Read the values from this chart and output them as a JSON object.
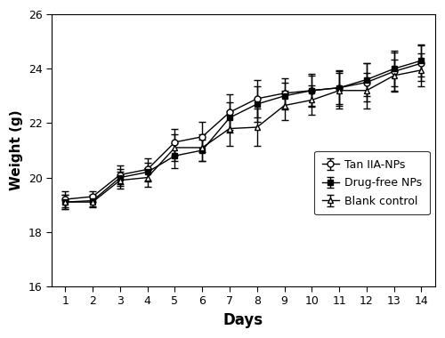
{
  "days": [
    1,
    2,
    3,
    4,
    5,
    6,
    7,
    8,
    9,
    10,
    11,
    12,
    13,
    14
  ],
  "tan_iia_nps": [
    19.2,
    19.3,
    20.1,
    20.3,
    21.3,
    21.5,
    22.4,
    22.9,
    23.1,
    23.2,
    23.3,
    23.5,
    23.9,
    24.2
  ],
  "tan_iia_nps_err": [
    0.3,
    0.2,
    0.35,
    0.4,
    0.5,
    0.55,
    0.65,
    0.7,
    0.55,
    0.6,
    0.65,
    0.7,
    0.7,
    0.65
  ],
  "drug_free_nps": [
    19.1,
    19.15,
    20.0,
    20.2,
    20.8,
    21.0,
    22.2,
    22.7,
    23.0,
    23.2,
    23.3,
    23.6,
    24.0,
    24.3
  ],
  "drug_free_nps_err": [
    0.25,
    0.2,
    0.3,
    0.35,
    0.45,
    0.4,
    0.55,
    0.65,
    0.5,
    0.55,
    0.6,
    0.6,
    0.65,
    0.6
  ],
  "blank_control": [
    19.1,
    19.1,
    19.9,
    20.0,
    21.1,
    21.1,
    21.8,
    21.85,
    22.65,
    22.85,
    23.2,
    23.2,
    23.75,
    23.95
  ],
  "blank_control_err": [
    0.25,
    0.2,
    0.3,
    0.35,
    0.5,
    0.5,
    0.65,
    0.7,
    0.55,
    0.55,
    0.65,
    0.65,
    0.6,
    0.6
  ],
  "xlabel": "Days",
  "ylabel": "Weight (g)",
  "ylim": [
    16,
    26
  ],
  "yticks": [
    16,
    18,
    20,
    22,
    24,
    26
  ],
  "xlim": [
    0.5,
    14.5
  ],
  "legend_labels": [
    "Tan IIA-NPs",
    "Drug-free NPs",
    "Blank control"
  ],
  "line_color": "#000000",
  "bg_color": "#ffffff",
  "xlabel_fontsize": 12,
  "ylabel_fontsize": 11,
  "tick_fontsize": 9,
  "legend_fontsize": 9
}
